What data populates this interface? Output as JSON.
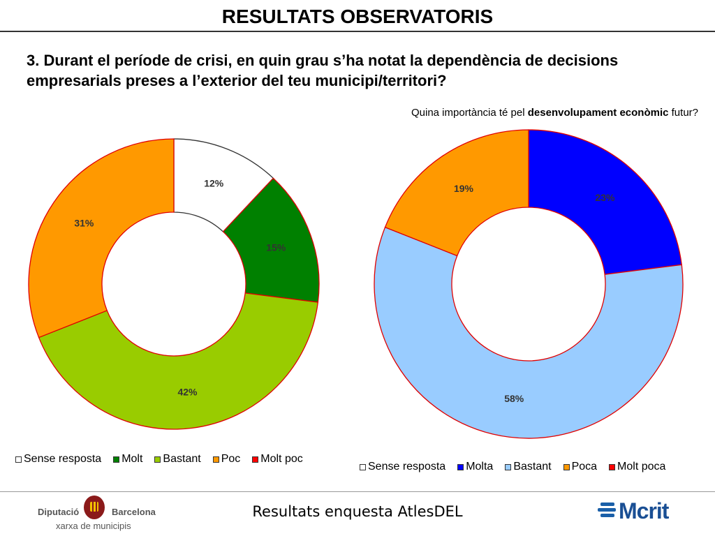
{
  "header": {
    "title": "RESULTATS OBSERVATORIS",
    "question": "3. Durant el període de crisi, en quin grau s’ha notat la dependència de decisions empresarials preses a l’exterior del teu municipi/territori?"
  },
  "subtitle": {
    "before": "Quina importància té pel ",
    "bold": "desenvolupament econòmic",
    "after": " futur?"
  },
  "chart_data": [
    {
      "type": "pie",
      "donut": true,
      "title": "",
      "categories": [
        "Sense resposta",
        "Molt",
        "Bastant",
        "Poc",
        "Molt poc"
      ],
      "values": [
        12,
        15,
        42,
        31,
        0
      ],
      "labels": [
        "12%",
        "15%",
        "42%",
        "31%",
        ""
      ],
      "colors": [
        "#ffffff",
        "#008000",
        "#99cc00",
        "#ff9900",
        "#ff0000"
      ],
      "legend_position": "bottom"
    },
    {
      "type": "pie",
      "donut": true,
      "title": "Quina importància té pel desenvolupament econòmic futur?",
      "categories": [
        "Sense resposta",
        "Molta",
        "Bastant",
        "Poca",
        "Molt poca"
      ],
      "values": [
        0,
        23,
        58,
        19,
        0
      ],
      "labels": [
        "",
        "23%",
        "58%",
        "19%",
        ""
      ],
      "colors": [
        "#ffffff",
        "#0000ff",
        "#99ccff",
        "#ff9900",
        "#ff0000"
      ],
      "legend_position": "bottom"
    }
  ],
  "footer": {
    "center_text": "Resultats enquesta AtlesDEL",
    "left_logo_line1_a": "Diputació",
    "left_logo_line1_b": "Barcelona",
    "left_logo_line2": "xarxa de municipis",
    "right_logo_text": "Mcrit"
  }
}
